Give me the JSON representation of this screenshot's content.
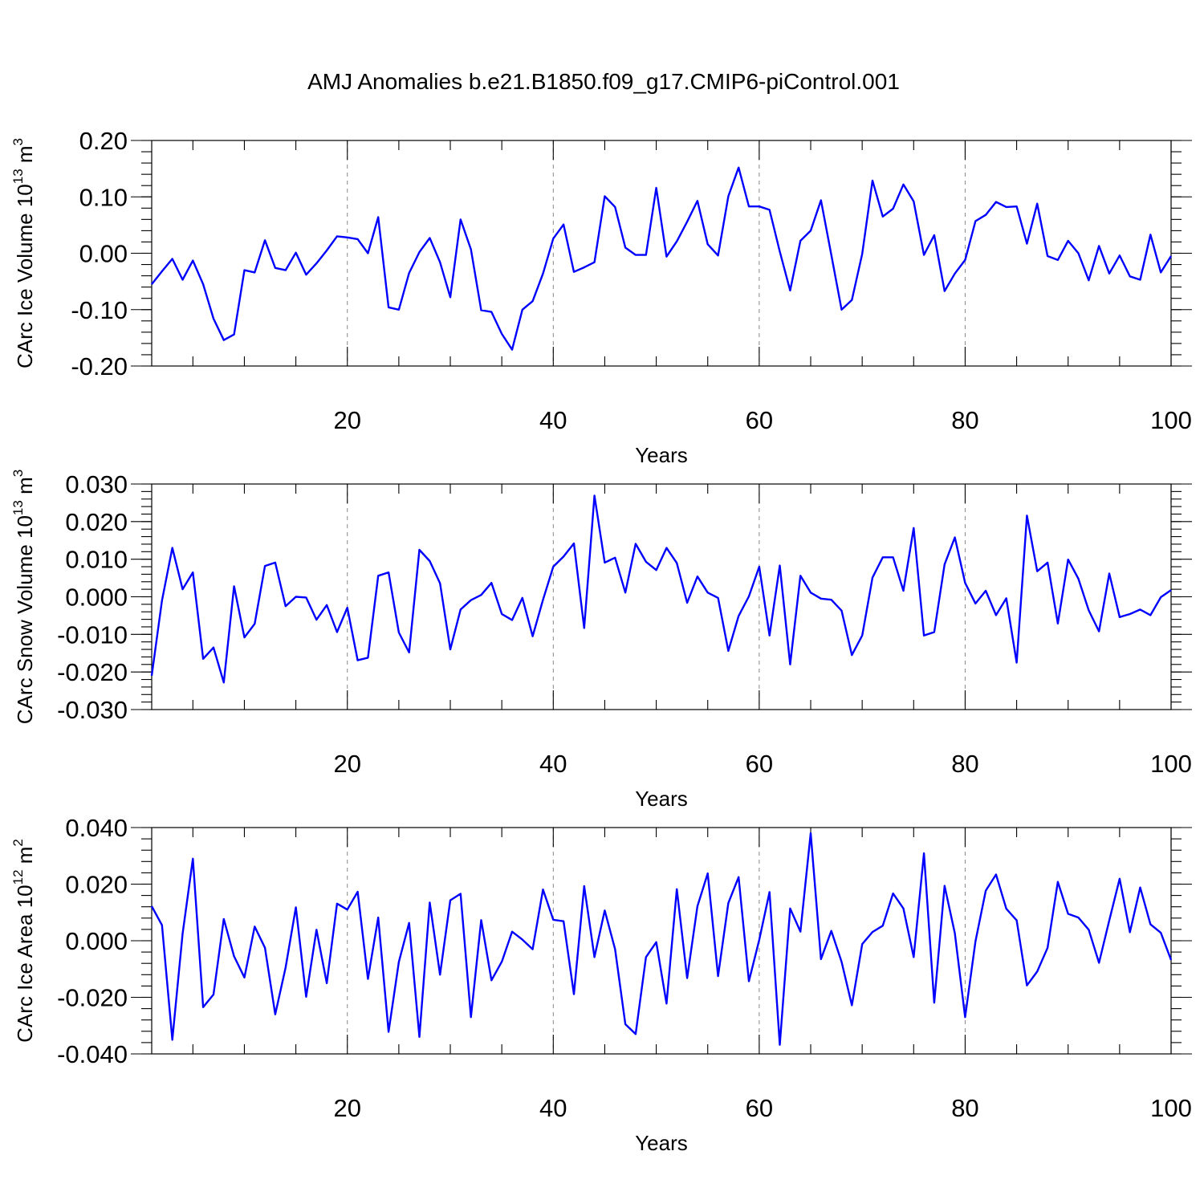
{
  "title": "AMJ Anomalies b.e21.B1850.f09_g17.CMIP6-piControl.001",
  "chart_data": [
    {
      "type": "line",
      "xlabel": "Years",
      "ylabel": "CArc Ice Volume 10",
      "ylabel_sup": "13",
      "ylabel_unit": " m",
      "ylabel_unit_sup": "3",
      "xlim": [
        1,
        100
      ],
      "ylim": [
        -0.2,
        0.2
      ],
      "xticks": [
        "20",
        "40",
        "60",
        "80",
        "100"
      ],
      "xtick_values": [
        20,
        40,
        60,
        80,
        100
      ],
      "yticks": [
        "0.20",
        "0.10",
        "0.00",
        "-0.10",
        "-0.20"
      ],
      "ytick_values": [
        0.2,
        0.1,
        0.0,
        -0.1,
        -0.2
      ],
      "grid_x": [
        20,
        40,
        60,
        80
      ],
      "color": "#0000ff",
      "values": [
        -0.055,
        -0.032,
        -0.01,
        -0.047,
        -0.013,
        -0.055,
        -0.116,
        -0.154,
        -0.144,
        -0.03,
        -0.034,
        0.023,
        -0.026,
        -0.03,
        0.001,
        -0.038,
        -0.018,
        0.005,
        0.03,
        0.028,
        0.025,
        0.0,
        0.064,
        -0.096,
        -0.1,
        -0.035,
        0.002,
        0.027,
        -0.016,
        -0.078,
        0.06,
        0.007,
        -0.101,
        -0.104,
        -0.143,
        -0.171,
        -0.1,
        -0.085,
        -0.036,
        0.026,
        0.051,
        -0.033,
        -0.025,
        -0.016,
        0.101,
        0.082,
        0.01,
        -0.003,
        -0.003,
        0.116,
        -0.006,
        0.021,
        0.056,
        0.093,
        0.016,
        -0.004,
        0.101,
        0.152,
        0.083,
        0.083,
        0.077,
        0.003,
        -0.066,
        0.022,
        0.04,
        0.094,
        -0.003,
        -0.1,
        -0.083,
        -0.001,
        0.129,
        0.065,
        0.079,
        0.122,
        0.092,
        -0.003,
        0.032,
        -0.067,
        -0.036,
        -0.012,
        0.057,
        0.068,
        0.091,
        0.082,
        0.083,
        0.017,
        0.088,
        -0.005,
        -0.012,
        0.022,
        0.0,
        -0.048,
        0.013,
        -0.036,
        -0.004,
        -0.041,
        -0.047,
        0.033,
        -0.034,
        -0.005
      ]
    },
    {
      "type": "line",
      "xlabel": "Years",
      "ylabel": "CArc Snow Volume 10",
      "ylabel_sup": "13",
      "ylabel_unit": " m",
      "ylabel_unit_sup": "3",
      "xlim": [
        1,
        100
      ],
      "ylim": [
        -0.03,
        0.03
      ],
      "xticks": [
        "20",
        "40",
        "60",
        "80",
        "100"
      ],
      "xtick_values": [
        20,
        40,
        60,
        80,
        100
      ],
      "yticks": [
        "0.030",
        "0.020",
        "0.010",
        "0.000",
        "-0.010",
        "-0.020",
        "-0.030"
      ],
      "ytick_values": [
        0.03,
        0.02,
        0.01,
        0.0,
        -0.01,
        -0.02,
        -0.03
      ],
      "grid_x": [
        20,
        40,
        60,
        80
      ],
      "color": "#0000ff",
      "values": [
        -0.021,
        -0.001,
        0.013,
        0.002,
        0.0065,
        -0.0165,
        -0.0135,
        -0.0228,
        0.0028,
        -0.0108,
        -0.0072,
        0.0082,
        0.0091,
        -0.0025,
        0.0,
        -0.0002,
        -0.0061,
        -0.0022,
        -0.0094,
        -0.0029,
        -0.0169,
        -0.0162,
        0.0056,
        0.0065,
        -0.0095,
        -0.0148,
        0.0125,
        0.0095,
        0.0036,
        -0.014,
        -0.0034,
        -0.0009,
        0.0005,
        0.0037,
        -0.0046,
        -0.0062,
        -0.0003,
        -0.0105,
        -0.0008,
        0.008,
        0.0107,
        0.0142,
        -0.0083,
        0.0269,
        0.0091,
        0.0104,
        0.0011,
        0.0141,
        0.0093,
        0.0071,
        0.013,
        0.009,
        -0.0016,
        0.0054,
        0.0011,
        -0.0003,
        -0.0144,
        -0.0051,
        0.0001,
        0.008,
        -0.0103,
        0.0083,
        -0.018,
        0.0056,
        0.0011,
        -0.0005,
        -0.0008,
        -0.0037,
        -0.0155,
        -0.0103,
        0.0051,
        0.0105,
        0.0105,
        0.0016,
        0.0183,
        -0.0103,
        -0.0094,
        0.0086,
        0.0158,
        0.0037,
        -0.0018,
        0.0016,
        -0.0049,
        -0.0004,
        -0.0175,
        0.0216,
        0.0068,
        0.0091,
        -0.0071,
        0.0099,
        0.0048,
        -0.0036,
        -0.0092,
        0.0062,
        -0.0054,
        -0.0046,
        -0.0034,
        -0.0049,
        -0.0001,
        0.0018
      ]
    },
    {
      "type": "line",
      "xlabel": "Years",
      "ylabel": "CArc Ice Area 10",
      "ylabel_sup": "12",
      "ylabel_unit": " m",
      "ylabel_unit_sup": "2",
      "xlim": [
        1,
        100
      ],
      "ylim": [
        -0.04,
        0.04
      ],
      "xticks": [
        "20",
        "40",
        "60",
        "80",
        "100"
      ],
      "xtick_values": [
        20,
        40,
        60,
        80,
        100
      ],
      "yticks": [
        "0.040",
        "0.020",
        "0.000",
        "-0.020",
        "-0.040"
      ],
      "ytick_values": [
        0.04,
        0.02,
        0.0,
        -0.02,
        -0.04
      ],
      "grid_x": [
        20,
        40,
        60,
        80
      ],
      "color": "#0000ff",
      "values": [
        0.0122,
        0.0055,
        -0.035,
        0.0025,
        0.029,
        -0.0235,
        -0.019,
        0.0077,
        -0.0055,
        -0.013,
        0.005,
        -0.0025,
        -0.026,
        -0.0095,
        0.0118,
        -0.0198,
        0.0039,
        -0.015,
        0.0131,
        0.011,
        0.0173,
        -0.0135,
        0.0082,
        -0.0322,
        -0.0075,
        0.0063,
        -0.034,
        0.0135,
        -0.012,
        0.0143,
        0.0166,
        -0.027,
        0.0073,
        -0.014,
        -0.0074,
        0.0032,
        0.0004,
        -0.003,
        0.0181,
        0.0074,
        0.0069,
        -0.0189,
        0.0193,
        -0.0058,
        0.0107,
        -0.003,
        -0.0295,
        -0.033,
        -0.0058,
        -0.0005,
        -0.0222,
        0.0182,
        -0.0132,
        0.0122,
        0.0238,
        -0.0125,
        0.0133,
        0.0225,
        -0.0143,
        0.0003,
        0.0172,
        -0.0368,
        0.0114,
        0.0032,
        0.038,
        -0.0065,
        0.0035,
        -0.0075,
        -0.0228,
        -0.0012,
        0.0031,
        0.0053,
        0.0167,
        0.0114,
        -0.0058,
        0.0309,
        -0.0219,
        0.0194,
        0.0026,
        -0.027,
        -0.0002,
        0.0177,
        0.0234,
        0.0113,
        0.0072,
        -0.0158,
        -0.0109,
        -0.0025,
        0.0208,
        0.0095,
        0.0082,
        0.0039,
        -0.0078,
        0.0072,
        0.0219,
        0.003,
        0.0188,
        0.0058,
        0.0028,
        -0.0068
      ]
    }
  ]
}
